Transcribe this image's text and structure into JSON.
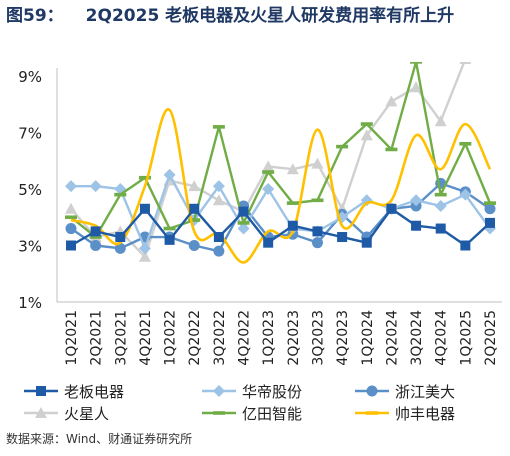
{
  "figure": {
    "number": "图59：",
    "title": "2Q2025 老板电器及火星人研发费用率有所上升",
    "source": "数据来源：Wind、财通证券研究所"
  },
  "chart_data": {
    "type": "line",
    "categories": [
      "1Q2021",
      "2Q2021",
      "3Q2021",
      "4Q2021",
      "1Q2022",
      "2Q2022",
      "3Q2022",
      "4Q2022",
      "1Q2023",
      "2Q2023",
      "3Q2023",
      "4Q2023",
      "1Q2024",
      "2Q2024",
      "3Q2024",
      "4Q2024",
      "1Q2025",
      "2Q2025"
    ],
    "ylim": [
      1,
      9
    ],
    "yticks": [
      "1%",
      "3%",
      "5%",
      "7%",
      "9%"
    ],
    "ytick_values": [
      1,
      3,
      5,
      7,
      9
    ],
    "grid": false,
    "legend_position": "bottom",
    "series": [
      {
        "name": "老板电器",
        "color": "#1f5aa6",
        "marker": "square",
        "smooth": false,
        "values": [
          3.0,
          3.5,
          3.3,
          4.3,
          3.2,
          4.3,
          3.3,
          4.2,
          3.1,
          3.7,
          3.5,
          3.3,
          3.1,
          4.3,
          3.7,
          3.6,
          3.0,
          3.8
        ]
      },
      {
        "name": "华帝股份",
        "color": "#9dc3e6",
        "marker": "diamond",
        "smooth": false,
        "values": [
          5.1,
          5.1,
          5.0,
          2.9,
          5.5,
          3.9,
          5.1,
          3.6,
          5.0,
          3.6,
          3.5,
          4.0,
          4.6,
          4.3,
          4.6,
          4.4,
          4.8,
          3.6
        ]
      },
      {
        "name": "浙江美大",
        "color": "#5b8fc7",
        "marker": "circle",
        "smooth": false,
        "values": [
          3.6,
          3.0,
          2.9,
          3.3,
          3.3,
          3.0,
          2.8,
          4.4,
          3.3,
          3.4,
          3.1,
          4.1,
          3.3,
          4.3,
          4.4,
          5.2,
          4.9,
          4.3
        ]
      },
      {
        "name": "火星人",
        "color": "#d0d0d0",
        "marker": "triangle",
        "smooth": false,
        "values": [
          4.3,
          3.3,
          3.5,
          2.6,
          5.3,
          5.1,
          4.6,
          4.2,
          5.8,
          5.7,
          5.9,
          4.3,
          6.9,
          8.1,
          8.6,
          7.4,
          9.6,
          9.8
        ]
      },
      {
        "name": "亿田智能",
        "color": "#70ad47",
        "marker": "dash",
        "smooth": false,
        "values": [
          4.0,
          3.3,
          4.8,
          5.4,
          3.6,
          3.9,
          7.2,
          3.8,
          5.6,
          4.5,
          4.6,
          6.5,
          7.3,
          6.4,
          9.5,
          4.8,
          6.6,
          4.5
        ]
      },
      {
        "name": "帅丰电器",
        "color": "#ffc000",
        "marker": "dash",
        "smooth": true,
        "values": [
          3.9,
          3.7,
          3.1,
          5.1,
          7.8,
          3.5,
          3.4,
          2.4,
          3.5,
          3.5,
          7.1,
          3.7,
          4.5,
          4.6,
          6.9,
          5.7,
          7.3,
          5.7
        ]
      }
    ]
  }
}
